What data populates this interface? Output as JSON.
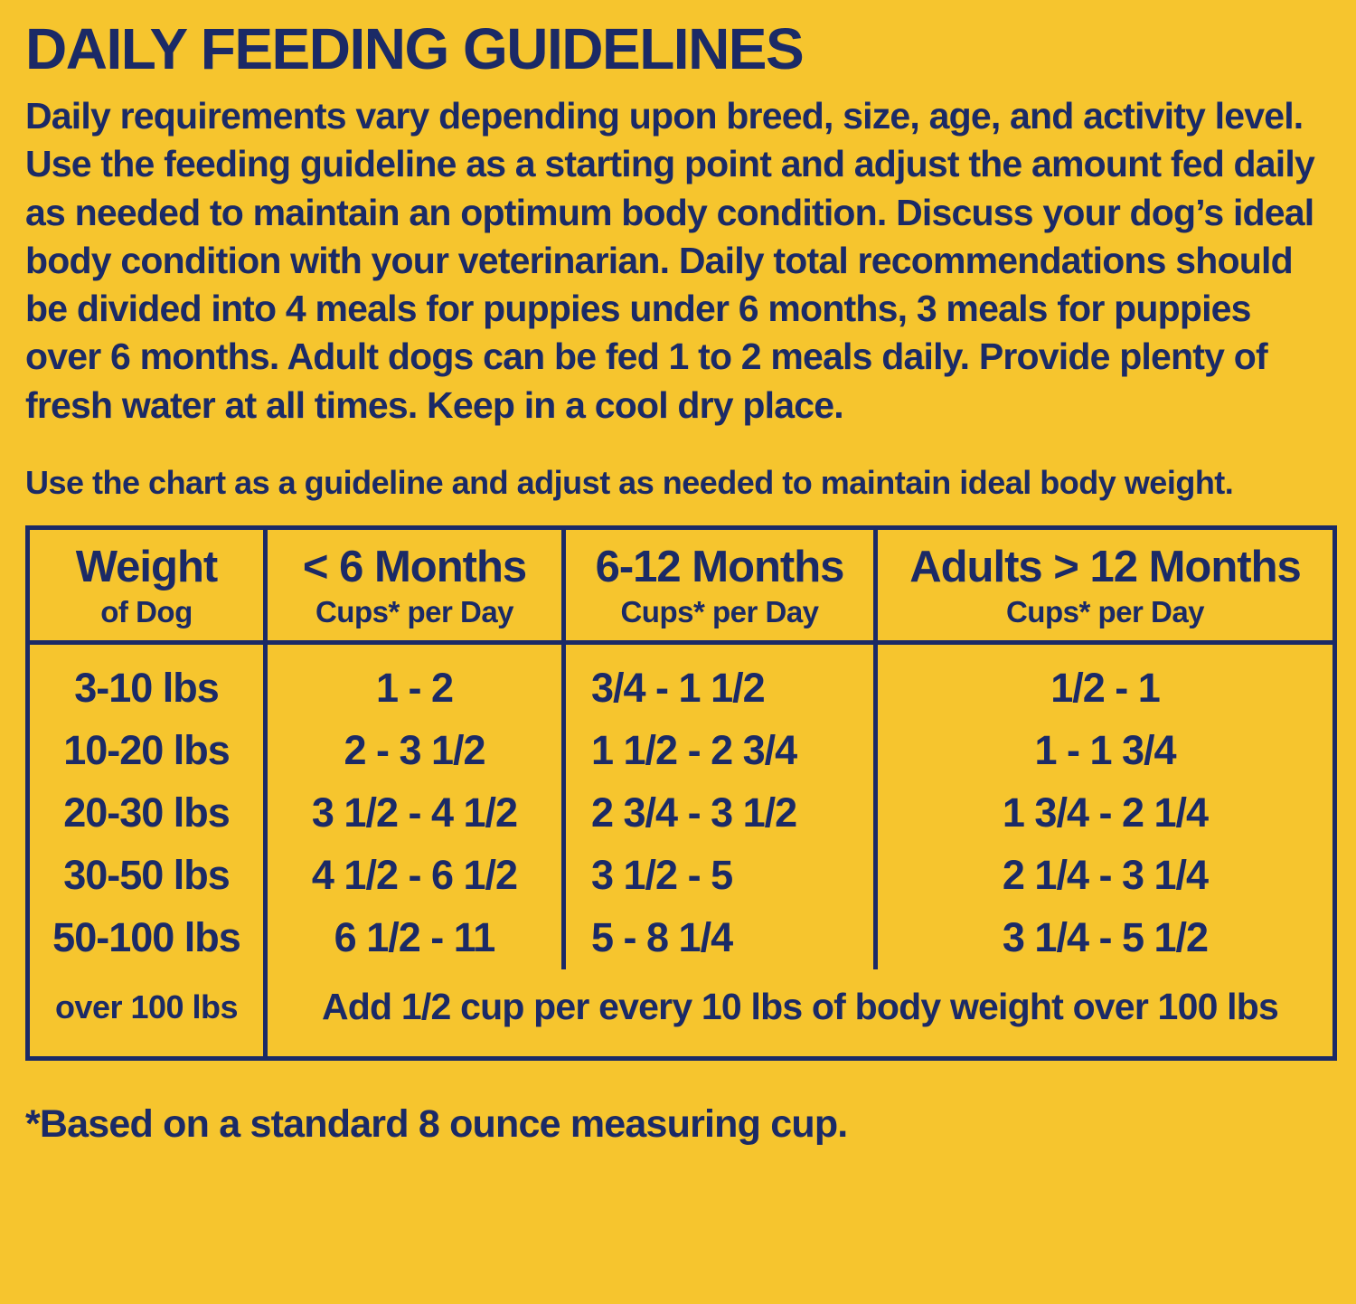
{
  "colors": {
    "background": "#f6c52e",
    "text": "#1b2a66",
    "border": "#1b2a66"
  },
  "title": "DAILY FEEDING GUIDELINES",
  "intro": "Daily requirements vary depending upon breed, size, age, and activity level. Use the feeding guideline as a starting point and adjust the amount fed daily as needed to maintain an optimum body condition. Discuss your dog’s ideal body condition with your veterinarian. Daily total recommendations should be divided into 4 meals for puppies under 6 months, 3 meals for puppies over 6 months. Adult dogs can be fed 1 to 2 meals daily. Provide plenty of fresh water at all times. Keep in a cool dry place.",
  "chart_note": "Use the chart as a guideline and adjust as needed to maintain ideal body weight.",
  "table": {
    "columns": [
      {
        "title": "Weight",
        "subtitle": "of Dog"
      },
      {
        "title": "< 6 Months",
        "subtitle": "Cups* per Day"
      },
      {
        "title": "6-12 Months",
        "subtitle": "Cups* per Day"
      },
      {
        "title": "Adults > 12 Months",
        "subtitle": "Cups* per Day"
      }
    ],
    "rows": [
      {
        "weight": "3-10 lbs",
        "under_6_months": "1 - 2",
        "months_6_12": "3/4 - 1 1/2",
        "adults": "1/2 - 1"
      },
      {
        "weight": "10-20 lbs",
        "under_6_months": "2 - 3 1/2",
        "months_6_12": "1 1/2 - 2 3/4",
        "adults": "1 - 1 3/4"
      },
      {
        "weight": "20-30 lbs",
        "under_6_months": "3 1/2 - 4 1/2",
        "months_6_12": "2 3/4 - 3 1/2",
        "adults": "1 3/4 - 2 1/4"
      },
      {
        "weight": "30-50 lbs",
        "under_6_months": "4 1/2 - 6 1/2",
        "months_6_12": "3 1/2 - 5",
        "adults": "2 1/4 - 3 1/4"
      },
      {
        "weight": "50-100 lbs",
        "under_6_months": "6 1/2 - 11",
        "months_6_12": "5 - 8 1/4",
        "adults": "3 1/4 - 5 1/2"
      }
    ],
    "over_100_row": {
      "weight": "over 100 lbs",
      "note": "Add 1/2 cup per every 10 lbs of body weight over 100 lbs"
    }
  },
  "footnote": "*Based on a standard 8 ounce measuring cup."
}
